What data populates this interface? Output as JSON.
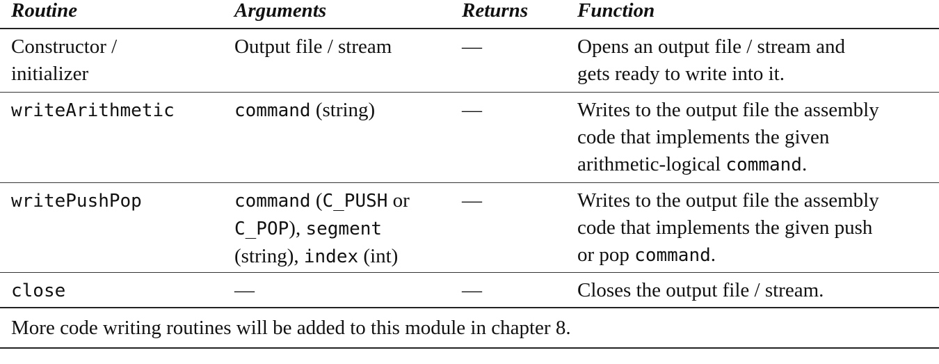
{
  "headers": {
    "routine": "Routine",
    "arguments": "Arguments",
    "returns": "Returns",
    "function": "Function"
  },
  "rows": [
    {
      "routine_line1": "Constructor /",
      "routine_line2": "initializer",
      "arguments": "Output file / stream",
      "returns": "—",
      "function_line1": "Opens an output file / stream and",
      "function_line2": "gets ready to write into it."
    },
    {
      "routine": "writeArithmetic",
      "arg_code": "command",
      "arg_type": " (string)",
      "returns": "—",
      "function_line1": "Writes to the output file the assembly",
      "function_line2": "code that implements the given",
      "function_line3_text": "arithmetic-logical ",
      "function_line3_code": "command",
      "function_line3_end": "."
    },
    {
      "routine": "writePushPop",
      "arg_command": "command",
      "arg_open": " (",
      "arg_cpush": "C_PUSH",
      "arg_or": " or",
      "arg_cpop": "C_POP",
      "arg_close_comma": "), ",
      "arg_segment": "segment",
      "arg_string": "(string), ",
      "arg_index": "index",
      "arg_int": " (int)",
      "returns": "—",
      "function_line1": "Writes to the output file the assembly",
      "function_line2": "code that implements the given push",
      "function_line3_text": "or pop ",
      "function_line3_code": "command",
      "function_line3_end": "."
    },
    {
      "routine": "close",
      "arguments": "—",
      "returns": "—",
      "function": "Closes the output file / stream."
    }
  ],
  "note": "More code writing routines will be added to this module in chapter 8."
}
